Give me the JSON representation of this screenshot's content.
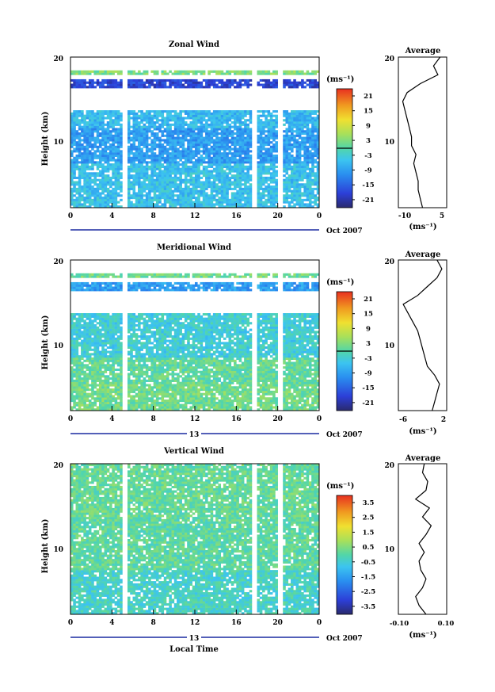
{
  "chart_data": [
    {
      "type": "heatmap",
      "title": "Zonal Wind",
      "ylabel": "Height (km)",
      "ylim": [
        3,
        20
      ],
      "yticks": [
        "10",
        "20"
      ],
      "xlim": [
        0,
        24
      ],
      "xticks": [
        "0",
        "4",
        "8",
        "12",
        "16",
        "20",
        "0"
      ],
      "date_label": "Oct 2007",
      "date_marker": "",
      "colorbar": {
        "unit_label": "(ms⁻¹)",
        "ticks": [
          "21",
          "15",
          "9",
          "3",
          "-3",
          "-9",
          "-15",
          "-21"
        ],
        "range": [
          -24,
          24
        ]
      },
      "rows": [
        {
          "h_from": 3,
          "h_to": 8,
          "value": -5
        },
        {
          "h_from": 8,
          "h_to": 12,
          "value": -9
        },
        {
          "h_from": 12,
          "h_to": 14,
          "value": -6
        },
        {
          "h_from": 16.5,
          "h_to": 17.5,
          "value": -18
        },
        {
          "h_from": 17.8,
          "h_to": 18.5,
          "value": 3
        }
      ],
      "average_profile": {
        "title": "Average",
        "xticks": [
          "-10",
          "5"
        ],
        "xlim": [
          -14,
          8
        ],
        "unit_label": "(ms⁻¹)",
        "yticks": [
          "10",
          "20"
        ],
        "points": [
          [
            -3,
            3
          ],
          [
            -4,
            4
          ],
          [
            -5,
            5
          ],
          [
            -5,
            6
          ],
          [
            -6,
            7
          ],
          [
            -7,
            8
          ],
          [
            -6,
            9
          ],
          [
            -8,
            10
          ],
          [
            -8,
            11
          ],
          [
            -9,
            12
          ],
          [
            -10,
            13
          ],
          [
            -11,
            14
          ],
          [
            -12,
            15
          ],
          [
            -10,
            16
          ],
          [
            -4,
            17
          ],
          [
            4,
            18
          ],
          [
            2,
            19
          ],
          [
            5,
            20
          ]
        ]
      }
    },
    {
      "type": "heatmap",
      "title": "Meridional Wind",
      "ylabel": "Height (km)",
      "ylim": [
        3,
        20
      ],
      "yticks": [
        "10",
        "20"
      ],
      "xlim": [
        0,
        24
      ],
      "xticks": [
        "0",
        "4",
        "8",
        "12",
        "16",
        "20",
        "0"
      ],
      "date_label": "Oct 2007",
      "date_marker": "13",
      "colorbar": {
        "unit_label": "(ms⁻¹)",
        "ticks": [
          "21",
          "15",
          "9",
          "3",
          "-3",
          "-9",
          "-15",
          "-21"
        ],
        "range": [
          -24,
          24
        ]
      },
      "rows": [
        {
          "h_from": 3,
          "h_to": 6,
          "value": 2
        },
        {
          "h_from": 6,
          "h_to": 9,
          "value": 1
        },
        {
          "h_from": 9,
          "h_to": 14,
          "value": -3
        },
        {
          "h_from": 16.5,
          "h_to": 17.5,
          "value": -9
        },
        {
          "h_from": 17.8,
          "h_to": 18.5,
          "value": 2
        }
      ],
      "average_profile": {
        "title": "Average",
        "xticks": [
          "-6",
          "2"
        ],
        "xlim": [
          -7,
          3
        ],
        "unit_label": "(ms⁻¹)",
        "yticks": [
          "10",
          "20"
        ],
        "points": [
          [
            0,
            3
          ],
          [
            0.5,
            4
          ],
          [
            1,
            5
          ],
          [
            1.5,
            6
          ],
          [
            0.5,
            7
          ],
          [
            -1,
            8
          ],
          [
            -1.5,
            9
          ],
          [
            -2,
            10
          ],
          [
            -2.5,
            11
          ],
          [
            -3,
            12
          ],
          [
            -4,
            13
          ],
          [
            -5,
            14
          ],
          [
            -6,
            15
          ],
          [
            -3,
            16
          ],
          [
            -1,
            17
          ],
          [
            1,
            18
          ],
          [
            2,
            19
          ],
          [
            1,
            20
          ]
        ]
      }
    },
    {
      "type": "heatmap",
      "title": "Vertical Wind",
      "ylabel": "Height (km)",
      "ylim": [
        3,
        20
      ],
      "yticks": [
        "10",
        "20"
      ],
      "xlim": [
        0,
        24
      ],
      "xticks": [
        "0",
        "4",
        "8",
        "12",
        "16",
        "20",
        "0"
      ],
      "date_label": "Oct 2007",
      "date_marker": "13",
      "xlabel": "Local Time",
      "colorbar": {
        "unit_label": "(ms⁻¹)",
        "ticks": [
          "3.5",
          "2.5",
          "1.5",
          "0.5",
          "-0.5",
          "-1.5",
          "-2.5",
          "-3.5"
        ],
        "range": [
          -4,
          4
        ]
      },
      "rows": [
        {
          "h_from": 3,
          "h_to": 8,
          "value": -0.3
        },
        {
          "h_from": 8,
          "h_to": 14,
          "value": 0.1
        },
        {
          "h_from": 14,
          "h_to": 20,
          "value": 0.2
        }
      ],
      "average_profile": {
        "title": "Average",
        "xticks": [
          "-0.10",
          "0.10"
        ],
        "xlim": [
          -0.14,
          0.14
        ],
        "unit_label": "(ms⁻¹)",
        "yticks": [
          "10",
          "20"
        ],
        "points": [
          [
            0.02,
            3
          ],
          [
            -0.02,
            4
          ],
          [
            -0.04,
            5
          ],
          [
            0.0,
            6
          ],
          [
            0.02,
            7
          ],
          [
            -0.01,
            8
          ],
          [
            -0.02,
            9
          ],
          [
            0.01,
            10
          ],
          [
            -0.02,
            11
          ],
          [
            0.02,
            12
          ],
          [
            0.05,
            13
          ],
          [
            0.0,
            14
          ],
          [
            0.04,
            15
          ],
          [
            -0.04,
            16
          ],
          [
            0.02,
            17
          ],
          [
            0.03,
            18
          ],
          [
            0.0,
            19
          ],
          [
            0.01,
            20
          ]
        ]
      }
    }
  ]
}
